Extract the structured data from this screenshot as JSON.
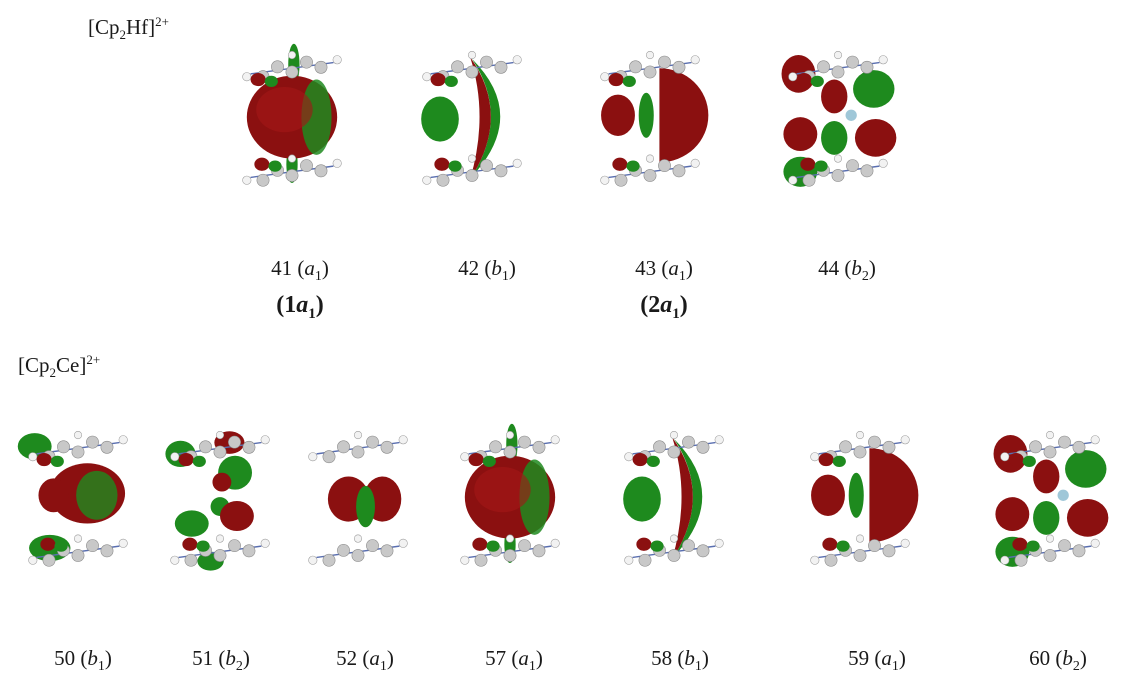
{
  "figure": {
    "row1_title": {
      "base": "[Cp",
      "sub": "2",
      "metal": "Hf]",
      "sup": "2+"
    },
    "row2_title": {
      "base": "[Cp",
      "sub": "2",
      "metal": "Ce]",
      "sup": "2+"
    },
    "colors": {
      "positive_lobe": "#8b1010",
      "negative_lobe": "#1e8a1e",
      "carbon": "#c8c8c8",
      "hydrogen": "#f2f2f2",
      "bond": "#5a6fb0"
    },
    "row1_orbitals": [
      {
        "num": "41",
        "sym": "a",
        "sub": "1",
        "shape": "sphere"
      },
      {
        "num": "42",
        "sym": "b",
        "sub": "1",
        "shape": "crescent"
      },
      {
        "num": "43",
        "sym": "a",
        "sub": "1",
        "shape": "lateral"
      },
      {
        "num": "44",
        "sym": "b",
        "sub": "2",
        "shape": "clover"
      }
    ],
    "row1_extra": [
      {
        "num": "1",
        "sym": "a",
        "sub": "1"
      },
      {
        "num": "2",
        "sym": "a",
        "sub": "1"
      }
    ],
    "row2_orbitals": [
      {
        "num": "50",
        "sym": "b",
        "sub": "1",
        "shape": "ring"
      },
      {
        "num": "51",
        "sym": "b",
        "sub": "2",
        "shape": "ring2"
      },
      {
        "num": "52",
        "sym": "a",
        "sub": "1",
        "shape": "small"
      },
      {
        "num": "57",
        "sym": "a",
        "sub": "1",
        "shape": "sphere"
      },
      {
        "num": "58",
        "sym": "b",
        "sub": "1",
        "shape": "crescent"
      },
      {
        "num": "59",
        "sym": "a",
        "sub": "1",
        "shape": "lateral"
      },
      {
        "num": "60",
        "sym": "b",
        "sub": "2",
        "shape": "clover"
      }
    ]
  }
}
